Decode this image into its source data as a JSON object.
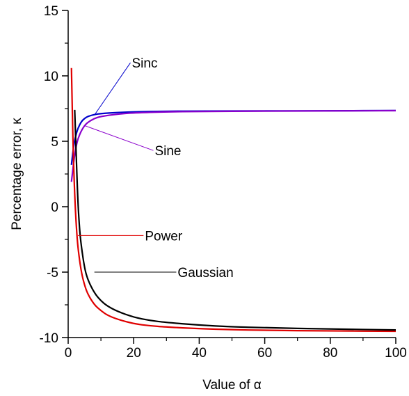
{
  "chart_data": {
    "type": "line",
    "xlabel": "Value of α",
    "ylabel": "Percentage error, κ",
    "xlim": [
      0,
      100
    ],
    "ylim": [
      -10,
      15
    ],
    "x_ticks": [
      0,
      20,
      40,
      60,
      80,
      100
    ],
    "y_ticks": [
      -10,
      -5,
      0,
      5,
      10,
      15
    ],
    "x_tick_labels": [
      "0",
      "20",
      "40",
      "60",
      "80",
      "100"
    ],
    "y_tick_labels": [
      "-10",
      "-5",
      "0",
      "5",
      "10",
      "15"
    ],
    "grid": false,
    "series": [
      {
        "name": "Sinc",
        "color": "#0000cc",
        "x": [
          1,
          1.5,
          2,
          2.5,
          3,
          4,
          5,
          6,
          8,
          10,
          15,
          20,
          30,
          40,
          60,
          80,
          100
        ],
        "y": [
          3.2,
          4.3,
          5.1,
          5.6,
          6.0,
          6.5,
          6.75,
          6.9,
          7.05,
          7.12,
          7.2,
          7.25,
          7.3,
          7.31,
          7.32,
          7.33,
          7.35
        ]
      },
      {
        "name": "Sine",
        "color": "#8a00cc",
        "x": [
          1,
          1.5,
          2,
          2.5,
          3,
          4,
          5,
          6,
          8,
          10,
          15,
          20,
          30,
          40,
          60,
          80,
          100
        ],
        "y": [
          1.9,
          3.0,
          4.0,
          4.7,
          5.2,
          5.8,
          6.2,
          6.45,
          6.75,
          6.9,
          7.08,
          7.17,
          7.25,
          7.28,
          7.31,
          7.32,
          7.34
        ]
      },
      {
        "name": "Power",
        "color": "#e00000",
        "x": [
          1,
          1.5,
          2,
          2.5,
          3,
          4,
          5,
          6,
          8,
          10,
          12,
          15,
          20,
          25,
          30,
          40,
          50,
          60,
          80,
          100
        ],
        "y": [
          10.6,
          4.5,
          0.8,
          -1.6,
          -3.2,
          -5.0,
          -6.0,
          -6.7,
          -7.5,
          -7.95,
          -8.3,
          -8.6,
          -8.95,
          -9.1,
          -9.2,
          -9.32,
          -9.4,
          -9.45,
          -9.5,
          -9.52
        ]
      },
      {
        "name": "Gaussian",
        "color": "#000000",
        "x": [
          2,
          2.5,
          3,
          3.5,
          4,
          5,
          6,
          8,
          10,
          12,
          15,
          20,
          25,
          30,
          40,
          50,
          60,
          80,
          100
        ],
        "y": [
          7.4,
          3.5,
          0.2,
          -1.8,
          -3.0,
          -4.7,
          -5.6,
          -6.6,
          -7.2,
          -7.6,
          -8.0,
          -8.45,
          -8.7,
          -8.85,
          -9.05,
          -9.18,
          -9.25,
          -9.35,
          -9.42
        ]
      }
    ],
    "annotations": [
      {
        "text": "Sinc",
        "series": "Sinc",
        "point": [
          8,
          7.0
        ],
        "label_at": [
          19,
          11.0
        ]
      },
      {
        "text": "Sine",
        "series": "Sine",
        "point": [
          5,
          6.2
        ],
        "label_at": [
          26,
          4.3
        ]
      },
      {
        "text": "Power",
        "series": "Power",
        "point": [
          3,
          -2.2
        ],
        "label_at": [
          23,
          -2.2
        ]
      },
      {
        "text": "Gaussian",
        "series": "Gaussian",
        "point": [
          8,
          -5.0
        ],
        "label_at": [
          33,
          -5.0
        ]
      }
    ]
  }
}
